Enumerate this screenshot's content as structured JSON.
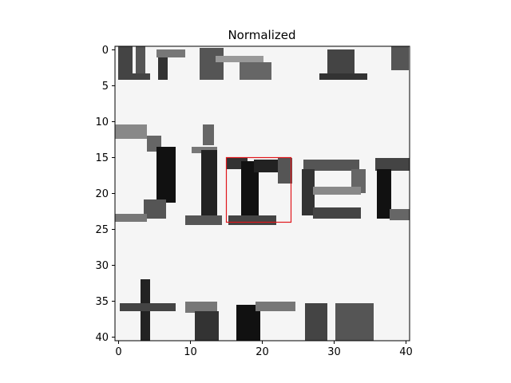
{
  "chart_data": {
    "type": "heatmap",
    "title": "Normalized",
    "xlabel": "",
    "ylabel": "",
    "image_size": [
      41,
      41
    ],
    "xlim": [
      -0.5,
      40.5
    ],
    "ylim": [
      40.5,
      -0.5
    ],
    "xticks": [
      0,
      10,
      20,
      30,
      40
    ],
    "yticks": [
      0,
      5,
      10,
      15,
      20,
      25,
      30,
      35,
      40
    ],
    "colormap": "gray",
    "image_content": "grayscale crop of scanned text showing the letters 'Direc' in the middle row, with partial characters above and below",
    "highlight_box": {
      "x": 15,
      "y": 15,
      "width": 9,
      "height": 9,
      "color": "#e0161b"
    }
  }
}
